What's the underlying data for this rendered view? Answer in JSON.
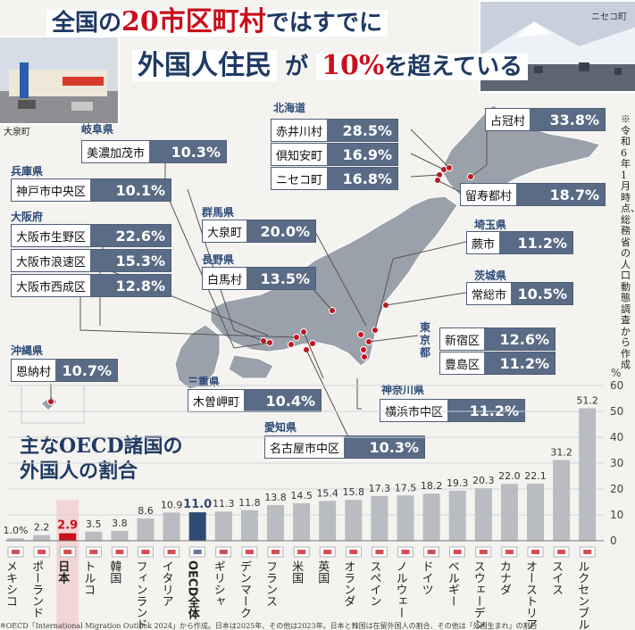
{
  "header": {
    "line1_a": "全国の",
    "line1_b": "20市区町村",
    "line1_c": "ではすでに",
    "line2_a": "外国人住民",
    "line2_b": "が",
    "line2_c": "10%",
    "line2_d": "を超えている"
  },
  "photos": {
    "left_caption": "大泉町",
    "right_caption": "ニセコ町"
  },
  "note": "※令和6年1月時点、総務省の人口動態調査から作成",
  "map": {
    "prefectures": {
      "gifu": "岐阜県",
      "hyogo": "兵庫県",
      "osaka": "大阪府",
      "okinawa": "沖縄県",
      "gunma": "群馬県",
      "nagano": "長野県",
      "mie": "三重県",
      "aichi": "愛知県",
      "hokkaido": "北海道",
      "saitama": "埼玉県",
      "ibaraki": "茨城県",
      "tokyo": "東京都",
      "kanagawa": "神奈川県"
    },
    "municipalities": [
      {
        "id": "shimukappu",
        "name": "占冠村",
        "pct": "33.8%"
      },
      {
        "id": "akaigawa",
        "name": "赤井川村",
        "pct": "28.5%"
      },
      {
        "id": "kutchan",
        "name": "倶知安町",
        "pct": "16.9%"
      },
      {
        "id": "niseko",
        "name": "ニセコ町",
        "pct": "16.8%"
      },
      {
        "id": "rusutsu",
        "name": "留寿都村",
        "pct": "18.7%"
      },
      {
        "id": "minokamo",
        "name": "美濃加茂市",
        "pct": "10.3%"
      },
      {
        "id": "kobe",
        "name": "神戸市中央区",
        "pct": "10.1%"
      },
      {
        "id": "ikuno",
        "name": "大阪市生野区",
        "pct": "22.6%"
      },
      {
        "id": "naniwa",
        "name": "大阪市浪速区",
        "pct": "15.3%"
      },
      {
        "id": "nishinari",
        "name": "大阪市西成区",
        "pct": "12.8%"
      },
      {
        "id": "oizumi",
        "name": "大泉町",
        "pct": "20.0%"
      },
      {
        "id": "hakuba",
        "name": "白馬村",
        "pct": "13.5%"
      },
      {
        "id": "warabi",
        "name": "蕨市",
        "pct": "11.2%"
      },
      {
        "id": "joso",
        "name": "常総市",
        "pct": "10.5%"
      },
      {
        "id": "shinjuku",
        "name": "新宿区",
        "pct": "12.6%"
      },
      {
        "id": "toshima",
        "name": "豊島区",
        "pct": "11.2%"
      },
      {
        "id": "onna",
        "name": "恩納村",
        "pct": "10.7%"
      },
      {
        "id": "kisosaki",
        "name": "木曽岬町",
        "pct": "10.4%"
      },
      {
        "id": "yokohama",
        "name": "横浜市中区",
        "pct": "11.2%"
      },
      {
        "id": "nagoya",
        "name": "名古屋市中区",
        "pct": "10.3%"
      }
    ]
  },
  "chart_title": {
    "line1": "主なOECD諸国の",
    "line2": "外国人の割合"
  },
  "bottom_note": "※OECD「International Migration Outlook 2024」から作成。日本は2025年、その他は2023年。日本と韓国は在留外国人の割合、その他は「外国生まれ」の割合",
  "colors": {
    "bar": "#b9bcc0",
    "japan_bar": "#c8101c",
    "oecd_bar": "#2f4a73",
    "navy": "#1f3a63",
    "label_box": "#5a6b86"
  },
  "chart_data": {
    "type": "bar",
    "title": "主なOECD諸国の外国人の割合",
    "xlabel": "",
    "ylabel": "%",
    "ylim": [
      0,
      60
    ],
    "yticks": [
      0,
      10,
      20,
      30,
      40,
      50,
      60
    ],
    "ytick_labels": [
      "0",
      "10",
      "20",
      "30",
      "40",
      "50",
      "60"
    ],
    "y_unit_label": "%",
    "grid": true,
    "categories": [
      "メキシコ",
      "ポーランド",
      "日本",
      "トルコ",
      "韓国",
      "フィンランド",
      "イタリア",
      "OECD全体",
      "ギリシャ",
      "デンマーク",
      "フランス",
      "米国",
      "英国",
      "オランダ",
      "スペイン",
      "ノルウェー",
      "ドイツ",
      "ベルギー",
      "スウェーデン",
      "カナダ",
      "オーストリア",
      "スイス",
      "ルクセンブルク"
    ],
    "values": [
      1.0,
      2.2,
      2.9,
      3.5,
      3.8,
      8.6,
      10.9,
      11.0,
      11.3,
      11.8,
      13.8,
      14.5,
      15.4,
      15.8,
      17.3,
      17.5,
      18.2,
      19.3,
      20.3,
      22.0,
      22.1,
      31.2,
      51.2
    ],
    "value_labels": [
      "1.0%",
      "2.2",
      "2.9",
      "3.5",
      "3.8",
      "8.6",
      "10.9",
      "11.0",
      "11.3",
      "11.8",
      "13.8",
      "14.5",
      "15.4",
      "15.8",
      "17.3",
      "17.5",
      "18.2",
      "19.3",
      "20.3",
      "22.0",
      "22.1",
      "31.2",
      "51.2"
    ],
    "highlight": {
      "日本": "#c8101c",
      "OECD全体": "#2f4a73"
    }
  }
}
